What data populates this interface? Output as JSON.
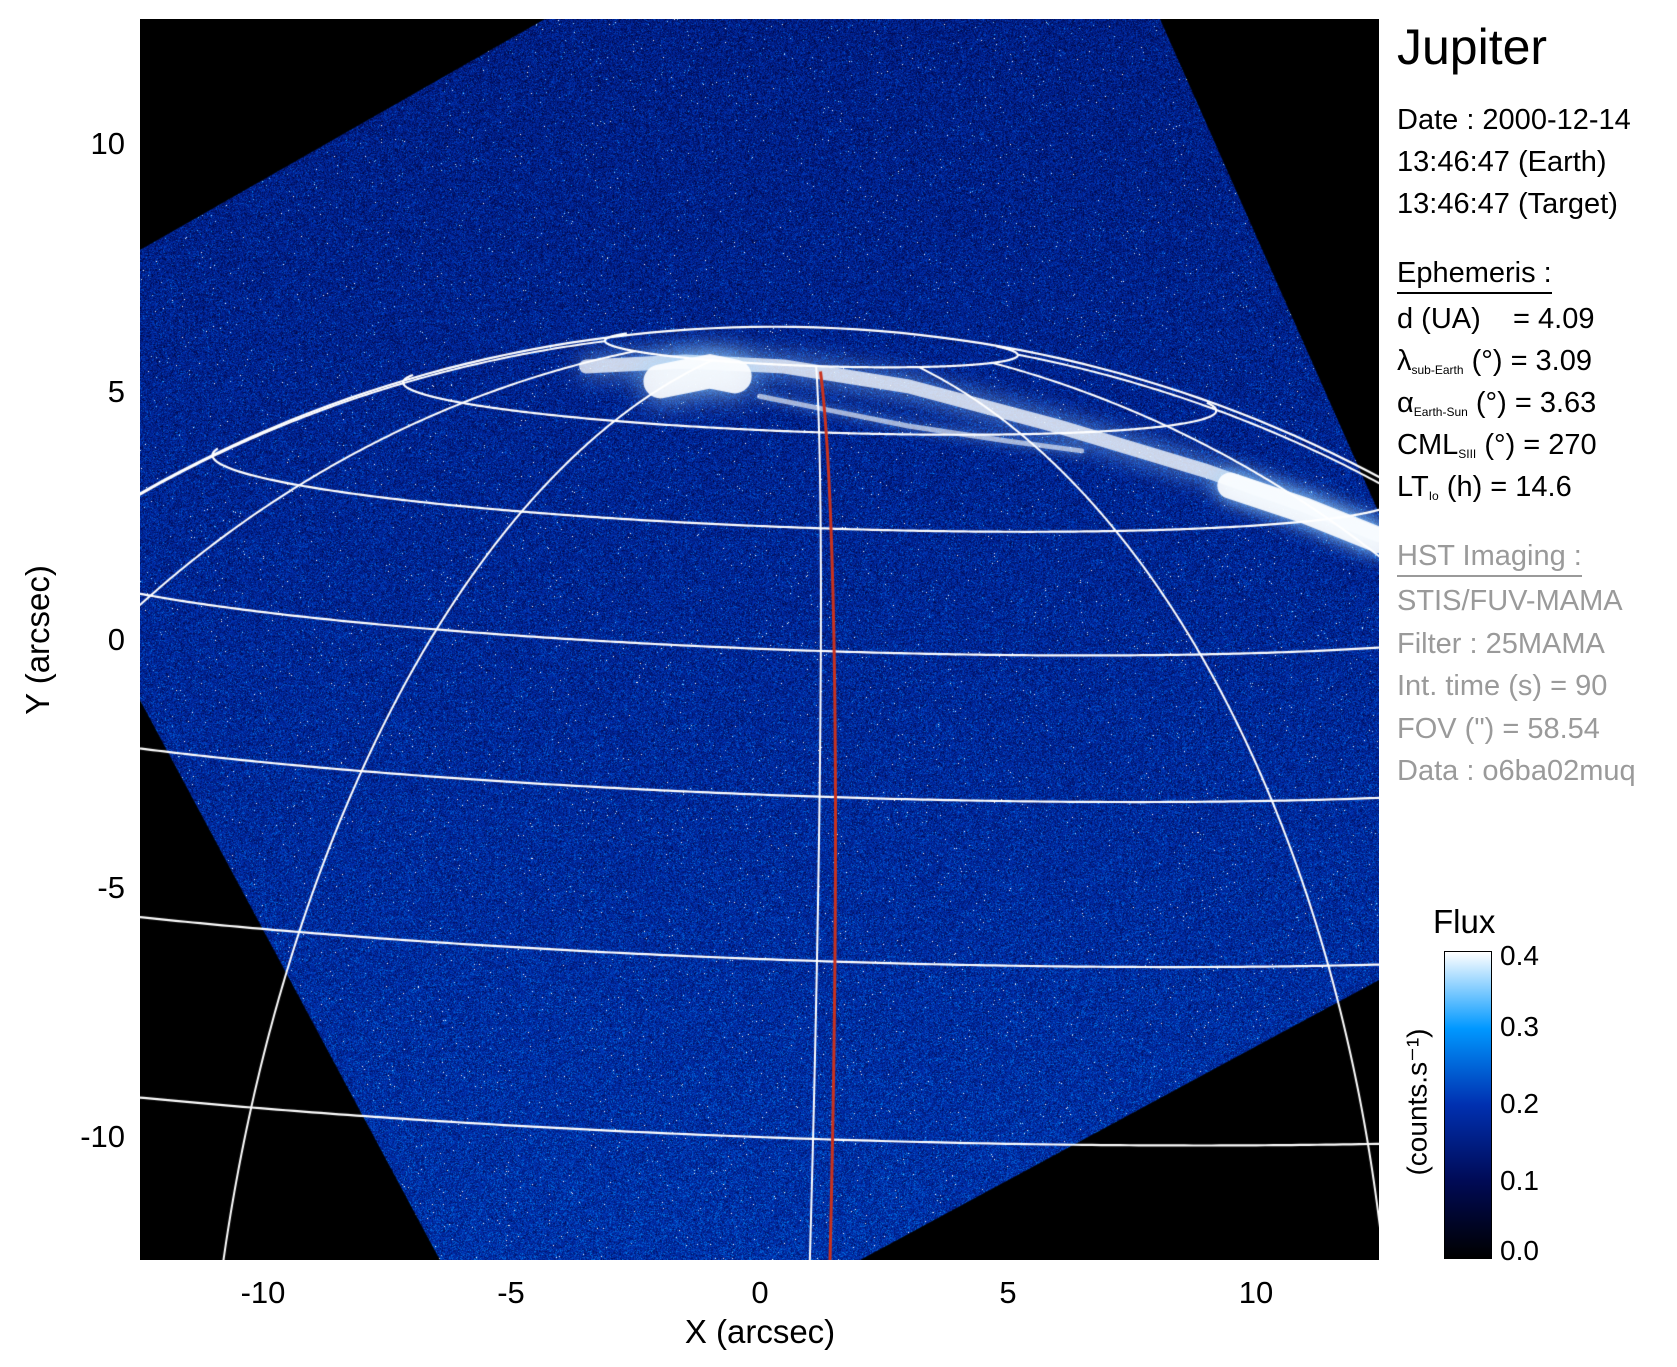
{
  "chart_data": {
    "type": "heatmap",
    "xlabel": "X (arcsec)",
    "ylabel": "Y (arcsec)",
    "xlim": [
      -12.5,
      12.5
    ],
    "ylim": [
      -12.5,
      12.5
    ],
    "xticks": [
      "-10",
      "-5",
      "0",
      "5",
      "10"
    ],
    "xtick_values": [
      -10,
      -5,
      0,
      5,
      10
    ],
    "yticks": [
      "10",
      "5",
      "0",
      "-5",
      "-10"
    ],
    "ytick_values": [
      10,
      5,
      0,
      -5,
      -10
    ],
    "colorbar": {
      "title": "Flux",
      "label": "(counts.s⁻¹)",
      "range": [
        0.0,
        0.4
      ],
      "ticks": [
        "0.0",
        "0.1",
        "0.2",
        "0.3",
        "0.4"
      ],
      "tick_values": [
        0.0,
        0.1,
        0.2,
        0.3,
        0.4
      ]
    },
    "colors": {
      "grid": "#ffffff",
      "meridian": "#c8321e",
      "background": "#000000"
    }
  },
  "panel": {
    "title": "Jupiter",
    "date": "Date : 2000-12-14",
    "time_earth": "13:46:47 (Earth)",
    "time_target": "13:46:47 (Target)",
    "ephemeris_header": "Ephemeris :",
    "eph": {
      "d_label": "d (UA)",
      "d_value": "= 4.09",
      "lambda_sym": "λ",
      "lambda_sub": "sub-Earth",
      "lambda_value": "(°) = 3.09",
      "alpha_sym": "α",
      "alpha_sub": "Earth-Sun",
      "alpha_value": "(°) = 3.63",
      "cml_sym": "CML",
      "cml_sub": "SIII",
      "cml_value": "(°) = 270",
      "lt_sym": "LT",
      "lt_sub": "Io",
      "lt_value": "(h) = 14.6"
    },
    "hst_header": "HST Imaging :",
    "instrument": "STIS/FUV-MAMA",
    "filter": "Filter : 25MAMA",
    "int_time": "Int. time (s) = 90",
    "fov": "FOV (\") = 58.54",
    "data": "Data : o6ba02muq"
  }
}
